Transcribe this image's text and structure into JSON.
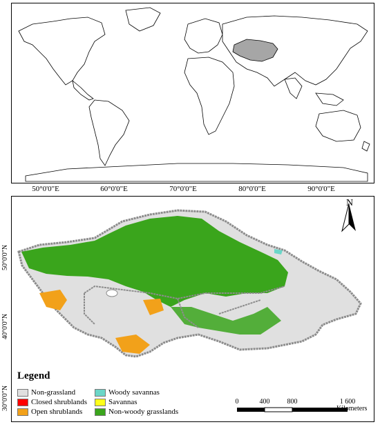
{
  "world_map": {
    "top_ticks": [
      "50°0'0\"E",
      "60°0'0\"E",
      "70°0'0\"E",
      "80°0'0\"E",
      "90°0'0\"E"
    ]
  },
  "region_map": {
    "side_ticks": [
      "50°0'0\"N",
      "40°0'0\"N",
      "30°0'0\"N"
    ],
    "north_label": "N",
    "legend": {
      "title": "Legend",
      "items": [
        {
          "label": "Non-grassland",
          "color": "#e0e0e0"
        },
        {
          "label": "Closed shrublands",
          "color": "#ff0000"
        },
        {
          "label": "Open shrublands",
          "color": "#f2a11a"
        },
        {
          "label": "Woody savannas",
          "color": "#6bd6c8"
        },
        {
          "label": "Savannas",
          "color": "#ffff1a"
        },
        {
          "label": "Non-woody grasslands",
          "color": "#3aa51c"
        }
      ]
    },
    "scale_bar": {
      "labels": [
        "0",
        "400",
        "800",
        "1 600"
      ],
      "unit": "Kilometers"
    }
  },
  "colors": {
    "highlight_region": "#a6a6a6",
    "outline": "#000000",
    "border": "#8c8c8c"
  }
}
